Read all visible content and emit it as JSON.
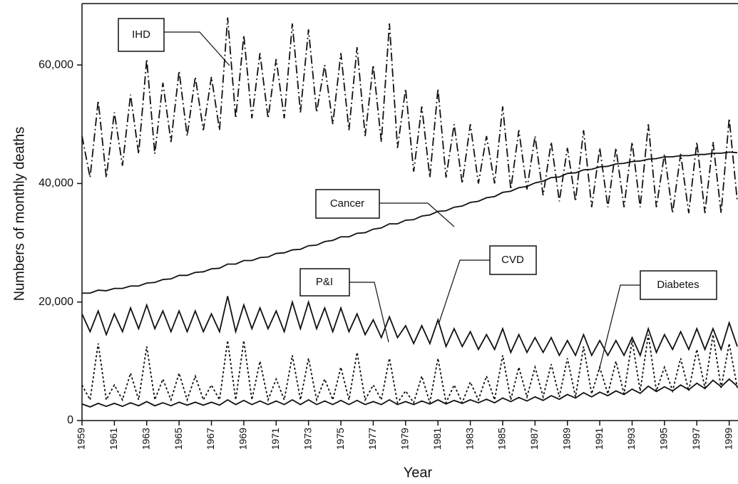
{
  "chart_data": {
    "type": "line",
    "x_label": "Year",
    "y_label": "Numbers of monthly deaths",
    "x": [
      1959,
      1959.5,
      1960,
      1960.5,
      1961,
      1961.5,
      1962,
      1962.5,
      1963,
      1963.5,
      1964,
      1964.5,
      1965,
      1965.5,
      1966,
      1966.5,
      1967,
      1967.5,
      1968,
      1968.5,
      1969,
      1969.5,
      1970,
      1970.5,
      1971,
      1971.5,
      1972,
      1972.5,
      1973,
      1973.5,
      1974,
      1974.5,
      1975,
      1975.5,
      1976,
      1976.5,
      1977,
      1977.5,
      1978,
      1978.5,
      1979,
      1979.5,
      1980,
      1980.5,
      1981,
      1981.5,
      1982,
      1982.5,
      1983,
      1983.5,
      1984,
      1984.5,
      1985,
      1985.5,
      1986,
      1986.5,
      1987,
      1987.5,
      1988,
      1988.5,
      1989,
      1989.5,
      1990,
      1990.5,
      1991,
      1991.5,
      1992,
      1992.5,
      1993,
      1993.5,
      1994,
      1994.5,
      1995,
      1995.5,
      1996,
      1996.5,
      1997,
      1997.5,
      1998,
      1998.5,
      1999,
      1999.5
    ],
    "xlim": [
      1959,
      1999.5
    ],
    "xticks": [
      1959,
      1961,
      1963,
      1965,
      1967,
      1969,
      1971,
      1973,
      1975,
      1977,
      1979,
      1981,
      1983,
      1985,
      1987,
      1989,
      1991,
      1993,
      1995,
      1997,
      1999
    ],
    "ylim": [
      0,
      70000
    ],
    "yticks": [
      0,
      {
        "value": 20000,
        "label": "20,000"
      },
      {
        "value": 40000,
        "label": "40,000"
      },
      {
        "value": 60000,
        "label": "60,000"
      }
    ],
    "series": [
      {
        "name": "IHD",
        "color": "#111111",
        "dash": "dashdot",
        "values": [
          48000,
          41000,
          54000,
          41000,
          52000,
          43000,
          55000,
          45000,
          61000,
          45000,
          57000,
          47000,
          59000,
          48000,
          58000,
          49000,
          58000,
          49000,
          68000,
          51000,
          65000,
          51000,
          62000,
          51000,
          61000,
          51000,
          67000,
          52000,
          66000,
          52000,
          60000,
          50000,
          62000,
          49000,
          63000,
          48000,
          60000,
          47000,
          67000,
          46000,
          56000,
          42000,
          53000,
          41000,
          56000,
          41000,
          50000,
          40000,
          50000,
          40000,
          48000,
          40000,
          53000,
          39000,
          49000,
          39000,
          48000,
          38000,
          47000,
          37000,
          46000,
          37000,
          49000,
          36000,
          46000,
          36000,
          46000,
          36000,
          47000,
          36000,
          50000,
          36000,
          45000,
          35000,
          45000,
          35000,
          47000,
          35000,
          47000,
          35000,
          51000,
          37000
        ]
      },
      {
        "name": "Cancer",
        "color": "#111111",
        "dash": "solid",
        "values": [
          21500,
          21500,
          22000,
          21900,
          22300,
          22300,
          22700,
          22700,
          23200,
          23300,
          23800,
          23900,
          24500,
          24500,
          25000,
          25100,
          25600,
          25700,
          26400,
          26400,
          27000,
          27000,
          27500,
          27600,
          28200,
          28300,
          28800,
          28900,
          29500,
          29600,
          30200,
          30400,
          31000,
          31000,
          31600,
          31700,
          32300,
          32500,
          33200,
          33200,
          33800,
          33900,
          34500,
          34700,
          35300,
          35400,
          36000,
          36200,
          36800,
          37000,
          37600,
          37800,
          38500,
          38700,
          39300,
          39500,
          40100,
          40400,
          41000,
          41100,
          41700,
          41800,
          42300,
          42400,
          42800,
          42900,
          43300,
          43400,
          43700,
          43800,
          44100,
          44200,
          44500,
          44500,
          44700,
          44700,
          44900,
          44900,
          45100,
          45100,
          45300,
          45200
        ]
      },
      {
        "name": "CVD",
        "color": "#111111",
        "dash": "solid",
        "values": [
          18000,
          15000,
          18500,
          14500,
          18000,
          15000,
          19000,
          15500,
          19500,
          15500,
          18500,
          15000,
          18500,
          15000,
          18500,
          15000,
          18000,
          15000,
          21000,
          15000,
          19500,
          15500,
          19000,
          15500,
          18500,
          15000,
          20000,
          15500,
          20000,
          15500,
          19000,
          15000,
          19000,
          15000,
          18000,
          14500,
          17000,
          14000,
          17500,
          14000,
          16000,
          13000,
          16000,
          13000,
          17000,
          12500,
          15500,
          12500,
          15000,
          12000,
          14500,
          12000,
          15500,
          11500,
          14500,
          11500,
          14000,
          11500,
          14000,
          11000,
          13500,
          11000,
          14500,
          11000,
          13500,
          11000,
          13500,
          11000,
          14000,
          11000,
          15500,
          11500,
          14500,
          12000,
          15000,
          12000,
          15500,
          12000,
          15500,
          12000,
          16500,
          12500
        ]
      },
      {
        "name": "P&I",
        "color": "#111111",
        "dash": "dotted",
        "values": [
          6000,
          3500,
          13000,
          3500,
          6000,
          3500,
          8000,
          3500,
          12500,
          3500,
          7000,
          3500,
          8000,
          3500,
          7500,
          3500,
          6000,
          3500,
          13500,
          3500,
          13500,
          3500,
          10000,
          3500,
          7000,
          3500,
          11000,
          3500,
          10500,
          3500,
          7000,
          3500,
          9000,
          3500,
          11500,
          3500,
          6000,
          3500,
          10500,
          3000,
          5000,
          3000,
          7500,
          3000,
          10500,
          3000,
          6000,
          3000,
          6500,
          3500,
          7500,
          3500,
          11000,
          3500,
          9000,
          4000,
          9000,
          4000,
          9500,
          4000,
          10500,
          4000,
          12500,
          4500,
          9000,
          4500,
          10000,
          4500,
          13500,
          5000,
          14500,
          5000,
          9000,
          5000,
          10500,
          5000,
          12000,
          5500,
          14500,
          5500,
          13000,
          5500
        ]
      },
      {
        "name": "Diabetes",
        "color": "#111111",
        "dash": "solid",
        "values": [
          2800,
          2300,
          2900,
          2400,
          2900,
          2400,
          3000,
          2500,
          3200,
          2500,
          3000,
          2500,
          3100,
          2600,
          3100,
          2600,
          3100,
          2600,
          3500,
          2700,
          3400,
          2700,
          3300,
          2700,
          3300,
          2700,
          3500,
          2700,
          3500,
          2700,
          3300,
          2700,
          3400,
          2700,
          3400,
          2700,
          3200,
          2700,
          3500,
          2700,
          3200,
          2700,
          3300,
          2800,
          3500,
          2800,
          3400,
          2900,
          3500,
          3000,
          3600,
          3000,
          3800,
          3200,
          3900,
          3300,
          4000,
          3400,
          4200,
          3600,
          4400,
          3800,
          4700,
          4000,
          4800,
          4200,
          5000,
          4400,
          5300,
          4600,
          5800,
          4900,
          5700,
          5000,
          6000,
          5200,
          6300,
          5400,
          6800,
          5700,
          7000,
          5800
        ]
      }
    ]
  }
}
